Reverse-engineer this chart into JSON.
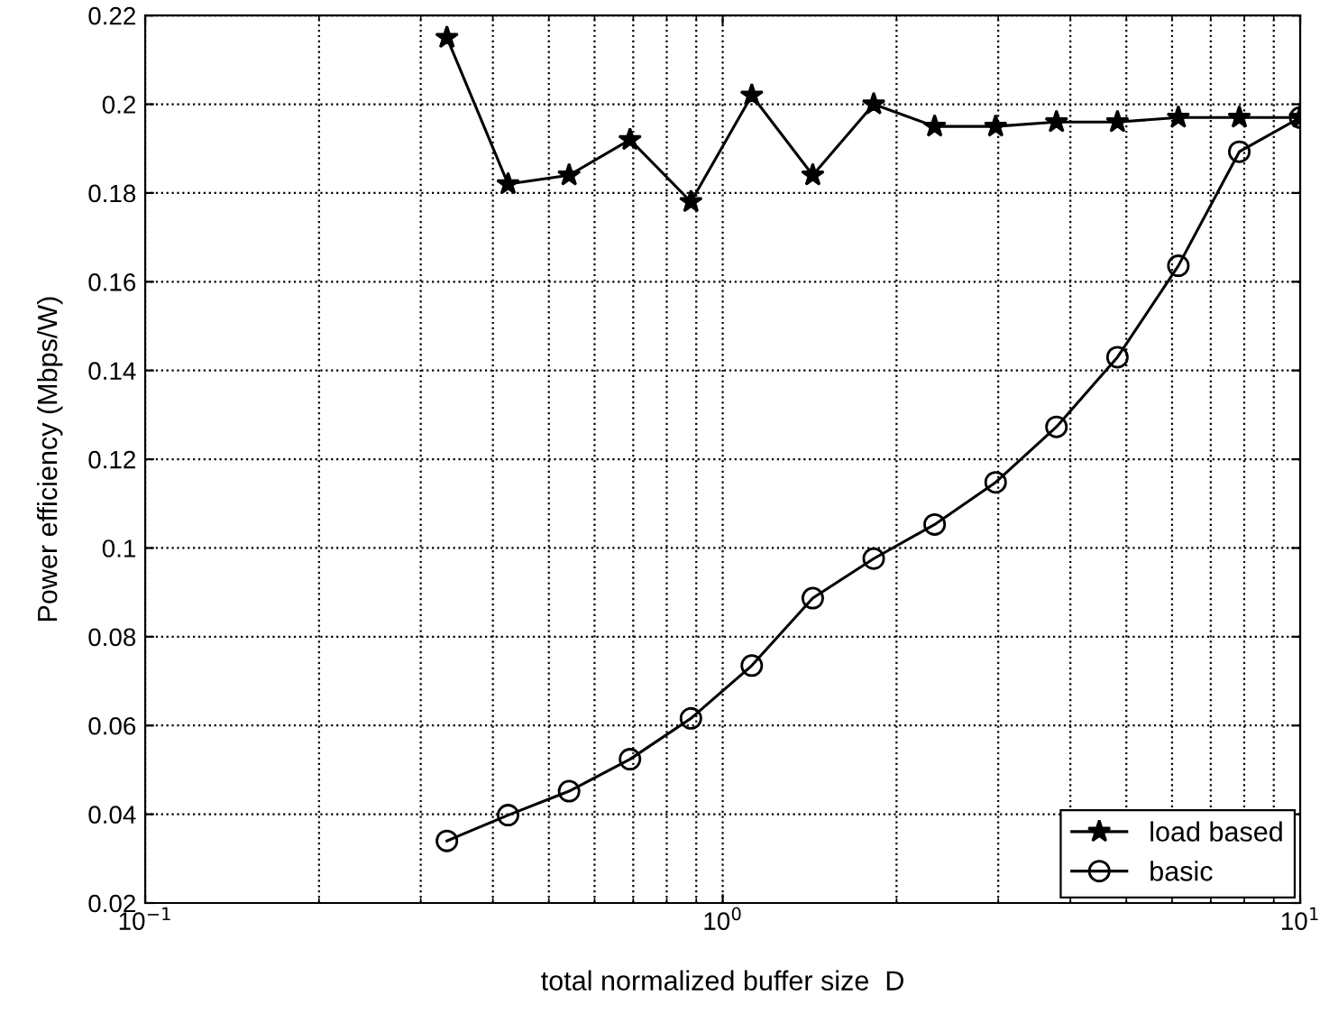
{
  "chart_data": {
    "type": "line",
    "xlabel": "total normalized buffer size  D",
    "ylabel": "Power efficiency (Mbps/W)",
    "log": "x",
    "grid": true,
    "legend": "bottom right",
    "line_style": "solid",
    "x": [
      0.333,
      0.425,
      0.542,
      0.691,
      0.881,
      1.123,
      1.432,
      1.826,
      2.328,
      2.969,
      3.784,
      4.826,
      6.152,
      7.845,
      10
    ],
    "xlim": [
      0.1,
      10
    ],
    "xticks": [
      {
        "value": 0.1,
        "label": "10$^{−1}$"
      },
      {
        "value": 1,
        "label": "10$^{0}$"
      },
      {
        "value": 10,
        "label": "10$^{1}$"
      }
    ],
    "ylim": [
      0.02,
      0.22
    ],
    "yticks": [
      0.02,
      0.04,
      0.06,
      0.08,
      0.1,
      0.12,
      0.14,
      0.16,
      0.18,
      0.2,
      0.22
    ],
    "series": [
      {
        "name": "load based",
        "color": "#000000",
        "marker": "star",
        "values": [
          0.215,
          0.182,
          0.184,
          0.192,
          0.178,
          0.202,
          0.184,
          0.2,
          0.195,
          0.195,
          0.196,
          0.196,
          0.197,
          0.197,
          0.197
        ]
      },
      {
        "name": "basic",
        "color": "#000000",
        "marker": "circle",
        "values": [
          0.034,
          0.0398,
          0.0452,
          0.0524,
          0.0616,
          0.0735,
          0.0887,
          0.0976,
          0.1053,
          0.1148,
          0.1273,
          0.143,
          0.1636,
          0.1893,
          0.197
        ]
      }
    ]
  }
}
